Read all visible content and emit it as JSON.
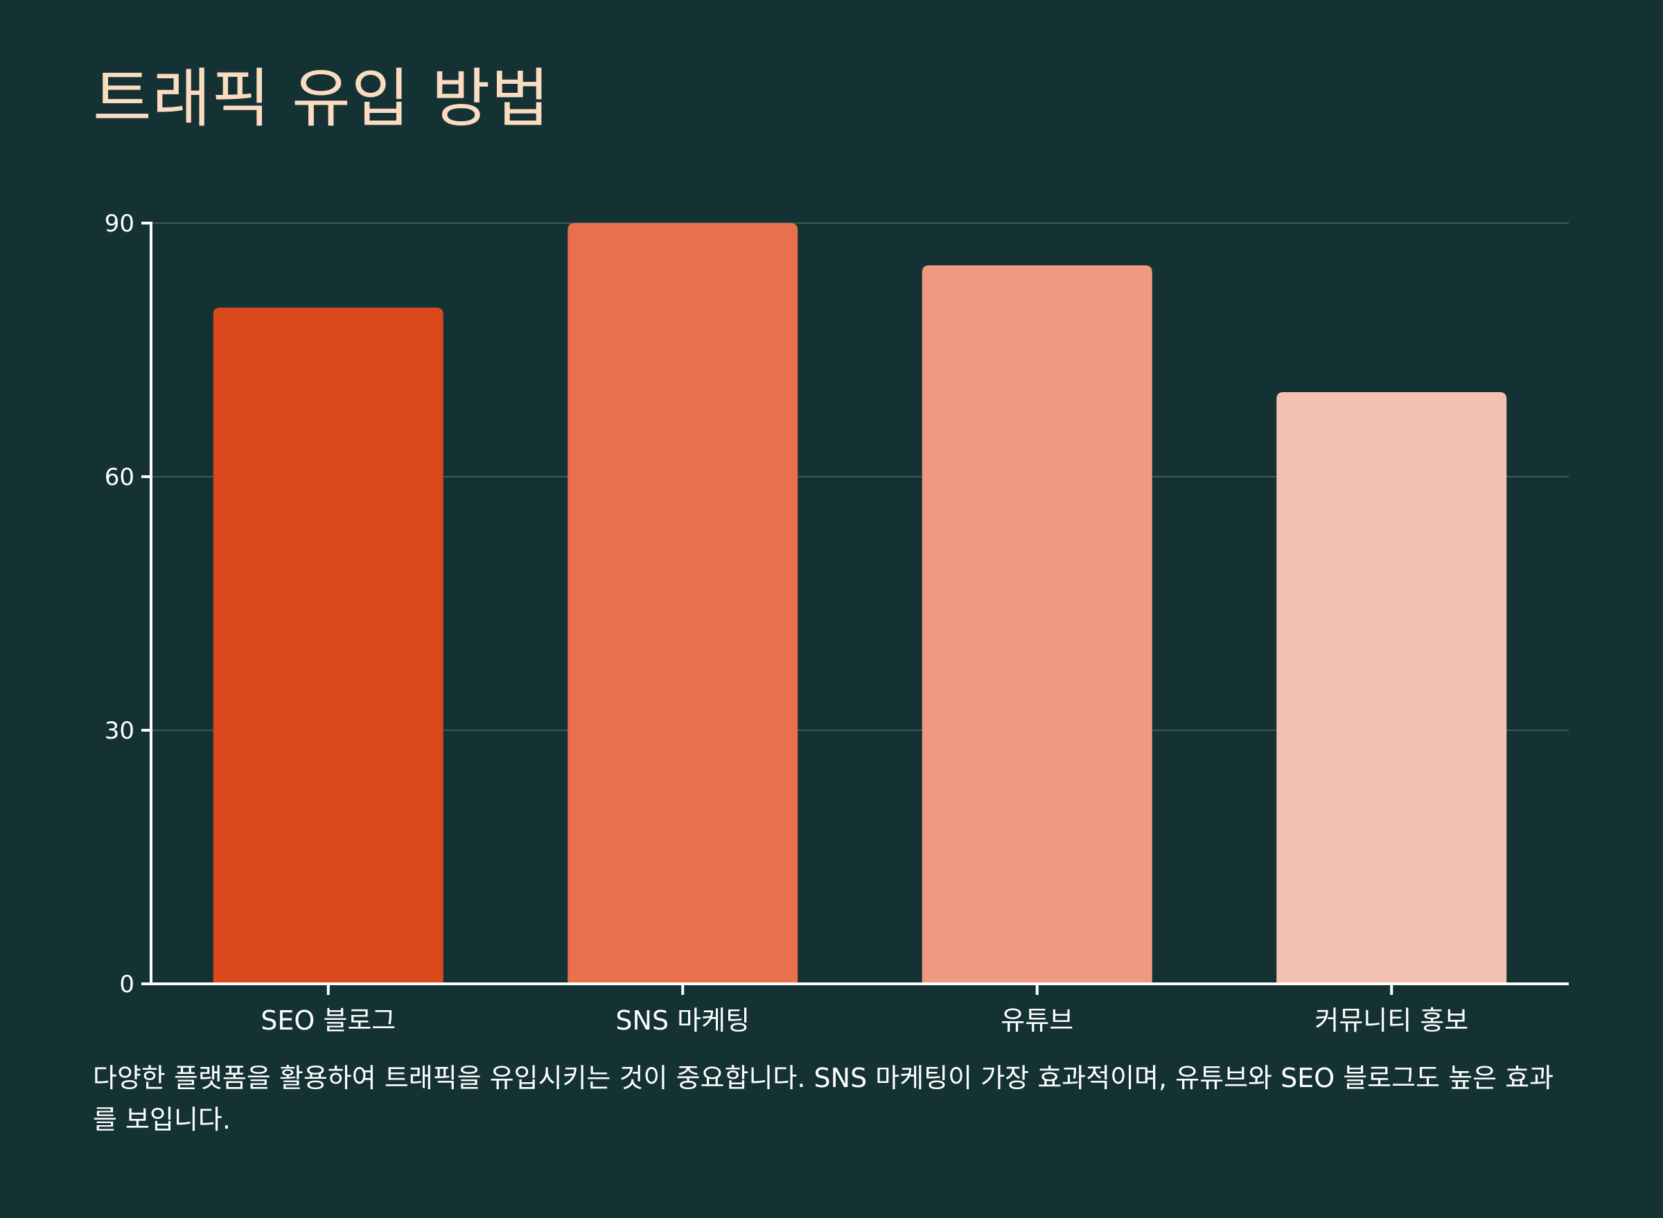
{
  "title": "트래픽 유입 방법",
  "caption": "다양한 플랫폼을 활용하여 트래픽을 유입시키는 것이 중요합니다. SNS 마케팅이 가장 효과적이며, 유튜브와 SEO 블로그도 높은 효과를 보입니다.",
  "colors": {
    "background": "#143234",
    "title": "#FBDCC0",
    "axis": "#FFFFFF",
    "grid": "#3E5A5A"
  },
  "chart_data": {
    "type": "bar",
    "categories": [
      "SEO 블로그",
      "SNS 마케팅",
      "유튜브",
      "커뮤니티 홍보"
    ],
    "values": [
      80,
      90,
      85,
      70
    ],
    "bar_colors": [
      "#DB481C",
      "#E8704D",
      "#EF9A80",
      "#F4C2B2"
    ],
    "title": "",
    "xlabel": "",
    "ylabel": "",
    "ylim": [
      0,
      90
    ],
    "yticks": [
      0,
      30,
      60,
      90
    ],
    "grid": true,
    "legend": "none"
  }
}
